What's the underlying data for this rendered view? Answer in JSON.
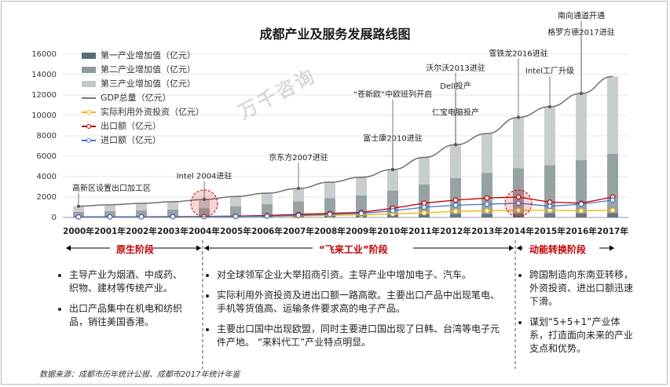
{
  "title": "成都产业及服务发展路线图",
  "watermark": "万千咨询",
  "colors": {
    "primary": "#5a6b7c",
    "secondary": "#8e9a9d",
    "tertiary": "#c3c9cb",
    "gdp": "#777777",
    "fdi": "#f5b400",
    "export": "#c00000",
    "import": "#4472c4",
    "stage": "#c00000"
  },
  "chart_data": {
    "type": "bar",
    "stacked": true,
    "categories": [
      "2000年",
      "2001年",
      "2002年",
      "2003年",
      "2004年",
      "2005年",
      "2006年",
      "2007年",
      "2008年",
      "2009年",
      "2010年",
      "2011年",
      "2012年",
      "2013年",
      "2014年",
      "2015年",
      "2016年",
      "2017年"
    ],
    "ylim": [
      0,
      16000
    ],
    "yticks": [
      0,
      2000,
      4000,
      6000,
      8000,
      10000,
      12000,
      14000,
      16000
    ],
    "series": [
      {
        "name": "第一产业增加值（亿元）",
        "kind": "bar",
        "values": [
          100,
          110,
          120,
          130,
          145,
          165,
          180,
          205,
          235,
          255,
          285,
          320,
          350,
          370,
          380,
          380,
          410,
          430
        ]
      },
      {
        "name": "第二产业增加值（亿元）",
        "kind": "bar",
        "values": [
          450,
          510,
          570,
          650,
          770,
          930,
          1120,
          1370,
          1670,
          1900,
          2350,
          2920,
          3500,
          4000,
          4450,
          4740,
          5230,
          5800
        ]
      },
      {
        "name": "第三产业增加值（亿元）",
        "kind": "bar",
        "values": [
          550,
          620,
          690,
          760,
          850,
          960,
          1080,
          1270,
          1550,
          1780,
          2060,
          2640,
          3280,
          3850,
          4980,
          5730,
          6510,
          7580
        ]
      },
      {
        "name": "GDP总量（亿元）",
        "kind": "line",
        "values": [
          1100,
          1240,
          1380,
          1540,
          1765,
          2055,
          2380,
          2845,
          3455,
          3935,
          4695,
          5880,
          7130,
          8220,
          9810,
          10850,
          12150,
          13810
        ]
      },
      {
        "name": "实际利用外资投资（亿元）",
        "kind": "line",
        "values": [
          50,
          55,
          60,
          65,
          75,
          90,
          120,
          150,
          200,
          250,
          350,
          450,
          600,
          650,
          700,
          700,
          650,
          700
        ]
      },
      {
        "name": "出口额（亿元）",
        "kind": "line",
        "values": [
          50,
          60,
          70,
          80,
          100,
          130,
          200,
          300,
          400,
          500,
          900,
          1400,
          1700,
          1900,
          2000,
          1500,
          1400,
          2000
        ]
      },
      {
        "name": "进口额（亿元）",
        "kind": "line",
        "values": [
          40,
          50,
          60,
          70,
          80,
          100,
          130,
          200,
          300,
          400,
          650,
          1000,
          1200,
          1300,
          1400,
          1100,
          1300,
          1700
        ]
      }
    ],
    "annotations": [
      {
        "text": "高新区设置出口加工区",
        "index": 0,
        "align": "start",
        "label_y": 2620
      },
      {
        "text": "Intel 2004进驻",
        "index": 4,
        "align": "middle",
        "label_y": 3800
      },
      {
        "text": "京东方2007进驻",
        "index": 7,
        "align": "middle",
        "label_y": 5600
      },
      {
        "text": "富士康2010进驻",
        "index": 10,
        "align": "middle",
        "label_y": 7500
      },
      {
        "text": "“苍新欧”中欧班列开启",
        "index": 10,
        "align": "middle",
        "label_y": 11800
      },
      {
        "text": "仁宝电脑投产",
        "index": 12,
        "align": "middle",
        "label_y": 10050
      },
      {
        "text": "Dell投产",
        "index": 12,
        "align": "middle",
        "label_y": 12600
      },
      {
        "text": "沃尔沃2013进驻",
        "index": 12,
        "align": "middle",
        "label_y": 14400
      },
      {
        "text": "雪铁龙2016进驻",
        "index": 14,
        "align": "middle",
        "label_y": 15800
      },
      {
        "text": "Intel工厂升级",
        "index": 15,
        "align": "middle",
        "label_y": 14100
      },
      {
        "text": "格罗方德2017进驻",
        "index": 16,
        "align": "middle",
        "label_y": 17900
      },
      {
        "text": "南向通道开通",
        "index": 16,
        "align": "middle",
        "label_y": 19500
      }
    ],
    "highlight_circles": [
      4,
      14
    ]
  },
  "stages": [
    {
      "label": "原生阶段"
    },
    {
      "label": "“飞来工业”阶段"
    },
    {
      "label": "动能转换阶段"
    }
  ],
  "columns": [
    {
      "bullets": [
        "主导产业为烟酒、中成药、织物、建材等传统产业。",
        "出口产品集中在机电和纺织品，销往美国香港。"
      ]
    },
    {
      "bullets": [
        "对全球领军企业大举招商引资。主导产业中增加电子、汽车。",
        "实际利用外资投资及进出口额一路高歌。主要出口产品中出现笔电、手机等货值高、运输条件要求高的电子产品。",
        "主要出口国中出现欧盟，同时主要进口国出现了日韩、台湾等电子元件产地。 “来料代工”产业特点明显。"
      ]
    },
    {
      "bullets": [
        "跨国制造向东南亚转移，外资投资、进出口额迅速下滑。",
        "谋划“5+5+1”产业体系，打造面向未来的产业支点和优势。"
      ]
    }
  ],
  "source": "数据来源：成都市历年统计公报、成都市2017年统计年鉴"
}
